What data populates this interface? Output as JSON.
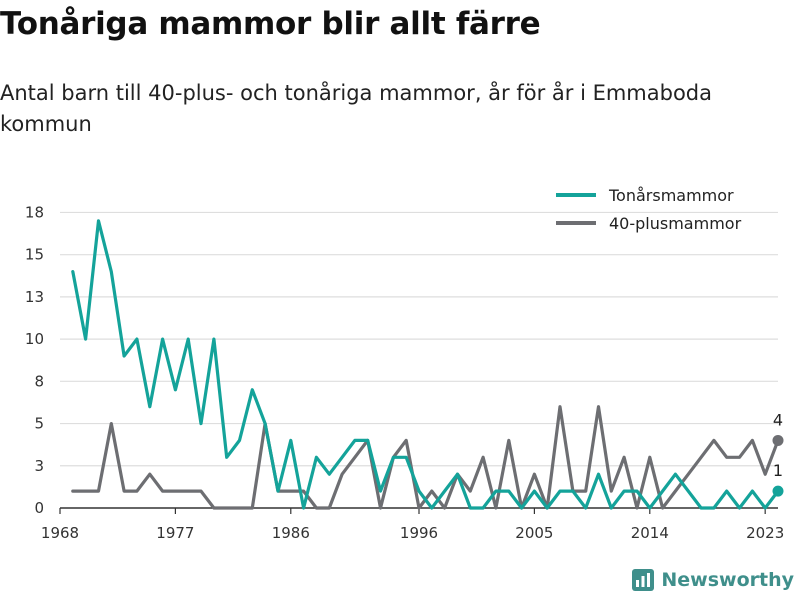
{
  "brand": {
    "name": "Newsworthy",
    "icon": "newsworthy-logo-icon"
  },
  "colors": {
    "teen": "#14a39a",
    "forty": "#6d6e72",
    "grid": "#dedede",
    "axis": "#333333",
    "brand": "#3f8f8b"
  },
  "chart_data": {
    "type": "line",
    "title": "Tonåriga mammor blir allt färre",
    "subtitle": "Antal barn till 40-plus- och tonåriga mammor, år för år i Emmaboda kommun",
    "xlabel": "",
    "ylabel": "",
    "xlim": [
      1968,
      2024
    ],
    "ylim": [
      0,
      18
    ],
    "x_ticks": [
      "1968",
      "1977",
      "1986",
      "1996",
      "2005",
      "2014",
      "2023"
    ],
    "y_ticks": [
      "0",
      "3",
      "5",
      "8",
      "10",
      "13",
      "15",
      "18"
    ],
    "y_tick_values": [
      0,
      2.5,
      5,
      7.5,
      10,
      12.5,
      15,
      17.5
    ],
    "grid": true,
    "legend_position": "top-right",
    "x": [
      1969,
      1970,
      1971,
      1972,
      1973,
      1974,
      1975,
      1976,
      1977,
      1978,
      1979,
      1980,
      1981,
      1982,
      1983,
      1984,
      1985,
      1986,
      1987,
      1988,
      1989,
      1990,
      1991,
      1992,
      1993,
      1994,
      1995,
      1996,
      1997,
      1998,
      1999,
      2000,
      2001,
      2002,
      2003,
      2004,
      2005,
      2006,
      2007,
      2008,
      2009,
      2010,
      2011,
      2012,
      2013,
      2014,
      2015,
      2016,
      2017,
      2018,
      2019,
      2020,
      2021,
      2022,
      2023,
      2024
    ],
    "series": [
      {
        "name": "Tonårsmammor",
        "color": "#14a39a",
        "values": [
          14,
          10,
          17,
          14,
          9,
          10,
          6,
          10,
          7,
          10,
          5,
          10,
          3,
          4,
          7,
          5,
          1,
          4,
          0,
          3,
          2,
          3,
          4,
          4,
          1,
          3,
          3,
          1,
          0,
          1,
          2,
          0,
          0,
          1,
          1,
          0,
          1,
          0,
          1,
          1,
          0,
          2,
          0,
          1,
          1,
          0,
          1,
          2,
          1,
          0,
          0,
          1,
          0,
          1,
          0,
          1
        ],
        "end_label": "1"
      },
      {
        "name": "40-plusmammor",
        "color": "#6d6e72",
        "values": [
          1,
          1,
          1,
          5,
          1,
          1,
          2,
          1,
          1,
          1,
          1,
          0,
          0,
          0,
          0,
          5,
          1,
          1,
          1,
          0,
          0,
          2,
          3,
          4,
          0,
          3,
          4,
          0,
          1,
          0,
          2,
          1,
          3,
          0,
          4,
          0,
          2,
          0,
          6,
          1,
          1,
          6,
          1,
          3,
          0,
          3,
          0,
          1,
          2,
          3,
          4,
          3,
          3,
          4,
          2,
          4
        ],
        "end_label": "4"
      }
    ]
  }
}
